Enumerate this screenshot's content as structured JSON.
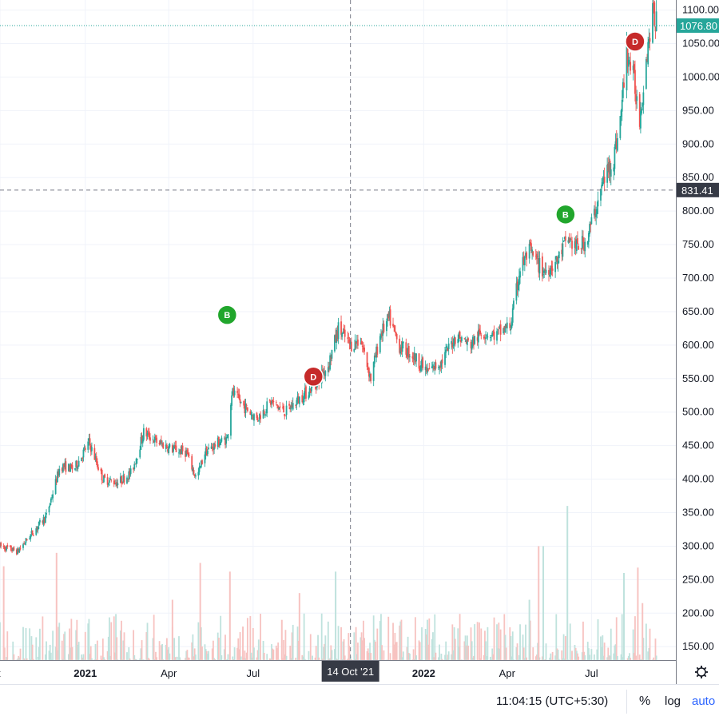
{
  "chart_data": {
    "type": "candlestick",
    "y_ticks": [
      "150.00",
      "200.00",
      "250.00",
      "300.00",
      "350.00",
      "400.00",
      "450.00",
      "500.00",
      "550.00",
      "600.00",
      "650.00",
      "700.00",
      "750.00",
      "800.00",
      "850.00",
      "900.00",
      "950.00",
      "1000.00",
      "1050.00",
      "1100.00"
    ],
    "ylim": [
      130,
      1115
    ],
    "x_ticks": [
      {
        "label": "t",
        "date": "2020-10-01"
      },
      {
        "label": "2021",
        "date": "2021-01-01"
      },
      {
        "label": "Apr",
        "date": "2021-04-01"
      },
      {
        "label": "Jul",
        "date": "2021-07-01"
      },
      {
        "label": "2022",
        "date": "2022-01-01"
      },
      {
        "label": "Apr",
        "date": "2022-04-01"
      },
      {
        "label": "Jul",
        "date": "2022-07-01"
      }
    ],
    "xlim": [
      "2020-10-01",
      "2022-09-30"
    ],
    "last_price": "1076.80",
    "crosshair": {
      "price": "831.41",
      "date_label": "14 Oct '21",
      "date": "2021-10-14"
    },
    "markers": [
      {
        "label": "B",
        "type": "buy",
        "date": "2021-06-03",
        "price": 645
      },
      {
        "label": "D",
        "type": "dividend",
        "date": "2021-09-04",
        "price": 553
      },
      {
        "label": "B",
        "type": "buy",
        "date": "2022-06-03",
        "price": 795
      },
      {
        "label": "D",
        "type": "dividend",
        "date": "2022-08-17",
        "price": 1053
      }
    ],
    "price_path": [
      [
        "2020-10-01",
        300
      ],
      [
        "2020-10-20",
        292
      ],
      [
        "2020-11-05",
        320
      ],
      [
        "2020-11-20",
        345
      ],
      [
        "2020-12-05",
        420
      ],
      [
        "2020-12-20",
        415
      ],
      [
        "2021-01-05",
        455
      ],
      [
        "2021-01-20",
        400
      ],
      [
        "2021-02-05",
        395
      ],
      [
        "2021-02-20",
        410
      ],
      [
        "2021-03-05",
        470
      ],
      [
        "2021-03-20",
        455
      ],
      [
        "2021-04-05",
        445
      ],
      [
        "2021-04-20",
        440
      ],
      [
        "2021-05-01",
        400
      ],
      [
        "2021-05-10",
        440
      ],
      [
        "2021-05-25",
        455
      ],
      [
        "2021-06-03",
        460
      ],
      [
        "2021-06-08",
        530
      ],
      [
        "2021-06-20",
        510
      ],
      [
        "2021-07-05",
        490
      ],
      [
        "2021-07-20",
        515
      ],
      [
        "2021-08-05",
        500
      ],
      [
        "2021-08-20",
        520
      ],
      [
        "2021-09-05",
        540
      ],
      [
        "2021-09-20",
        570
      ],
      [
        "2021-10-01",
        625
      ],
      [
        "2021-10-14",
        600
      ],
      [
        "2021-10-25",
        608
      ],
      [
        "2021-11-05",
        550
      ],
      [
        "2021-11-15",
        615
      ],
      [
        "2021-11-25",
        640
      ],
      [
        "2021-12-05",
        600
      ],
      [
        "2021-12-20",
        585
      ],
      [
        "2022-01-05",
        560
      ],
      [
        "2022-01-20",
        575
      ],
      [
        "2022-02-05",
        615
      ],
      [
        "2022-02-20",
        600
      ],
      [
        "2022-03-05",
        620
      ],
      [
        "2022-03-20",
        615
      ],
      [
        "2022-04-05",
        630
      ],
      [
        "2022-04-15",
        715
      ],
      [
        "2022-04-25",
        740
      ],
      [
        "2022-05-10",
        710
      ],
      [
        "2022-05-25",
        725
      ],
      [
        "2022-06-05",
        760
      ],
      [
        "2022-06-15",
        745
      ],
      [
        "2022-06-25",
        755
      ],
      [
        "2022-07-05",
        800
      ],
      [
        "2022-07-15",
        850
      ],
      [
        "2022-07-25",
        880
      ],
      [
        "2022-08-01",
        935
      ],
      [
        "2022-08-08",
        1040
      ],
      [
        "2022-08-15",
        1000
      ],
      [
        "2022-08-22",
        940
      ],
      [
        "2022-08-30",
        1040
      ],
      [
        "2022-09-05",
        1095
      ],
      [
        "2022-09-10",
        1077
      ]
    ],
    "volume_spikes": [
      [
        "2020-10-05",
        270
      ],
      [
        "2020-12-01",
        290
      ],
      [
        "2021-04-10",
        135
      ],
      [
        "2021-05-05",
        275
      ],
      [
        "2021-06-06",
        262
      ],
      [
        "2021-06-20",
        180
      ],
      [
        "2021-04-05",
        220
      ],
      [
        "2021-08-20",
        230
      ],
      [
        "2021-09-28",
        262
      ],
      [
        "2021-08-01",
        190
      ],
      [
        "2022-05-05",
        300
      ],
      [
        "2022-05-10",
        300
      ],
      [
        "2022-06-05",
        360
      ],
      [
        "2022-04-25",
        220
      ],
      [
        "2022-08-05",
        260
      ],
      [
        "2022-08-20",
        268
      ],
      [
        "2022-08-25",
        215
      ]
    ],
    "volume_ylim": [
      0,
      400
    ],
    "colors": {
      "up": "#26a69a",
      "down": "#ef5350",
      "vol_up": "#bfe2dd",
      "vol_down": "#f7c3c1",
      "grid": "#f0f3fa",
      "axis": "#787b86",
      "last_price": "#26a69a",
      "crosshair": "#787b86",
      "buy": "#21a62c",
      "dividend": "#c62a2a",
      "tag_bg": "#363a45"
    }
  },
  "bottom_bar": {
    "clock": "11:04:15 (UTC+5:30)",
    "percent": "%",
    "log": "log",
    "auto": "auto"
  },
  "icons": {
    "settings": "gear-icon"
  }
}
